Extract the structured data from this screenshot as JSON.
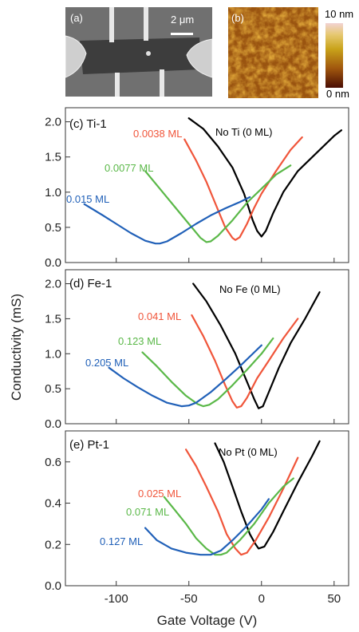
{
  "images": {
    "sem": {
      "panel": "(a)",
      "scalebar": "2 μm"
    },
    "afm": {
      "panel": "(b)",
      "colorbar_top": "10 nm",
      "colorbar_bottom": "0 nm"
    }
  },
  "chart_data": [
    {
      "type": "line",
      "panel": "(c) Ti-1",
      "xlim": [
        -135,
        60
      ],
      "ylim": [
        0,
        2.2
      ],
      "yticks": [
        "0.0",
        "0.5",
        "1.0",
        "1.5",
        "2.0"
      ],
      "series": [
        {
          "name": "No Ti (0 ML)",
          "color": "#000000",
          "x": [
            -50,
            -40,
            -30,
            -20,
            -12,
            -6,
            -3,
            0,
            3,
            8,
            15,
            25,
            40,
            50,
            55
          ],
          "y": [
            2.05,
            1.9,
            1.65,
            1.35,
            0.98,
            0.6,
            0.45,
            0.37,
            0.45,
            0.7,
            1.0,
            1.3,
            1.6,
            1.8,
            1.88
          ]
        },
        {
          "name": "0.0038 ML",
          "color": "#f0553a",
          "x": [
            -53,
            -45,
            -38,
            -32,
            -25,
            -20,
            -18,
            -15,
            -10,
            -5,
            0,
            10,
            20,
            28
          ],
          "y": [
            1.75,
            1.45,
            1.15,
            0.85,
            0.5,
            0.35,
            0.32,
            0.36,
            0.55,
            0.78,
            0.98,
            1.3,
            1.6,
            1.78
          ]
        },
        {
          "name": "0.0077 ML",
          "color": "#5ab848",
          "x": [
            -80,
            -70,
            -60,
            -50,
            -42,
            -38,
            -35,
            -30,
            -20,
            -10,
            0,
            10,
            20
          ],
          "y": [
            1.3,
            1.05,
            0.8,
            0.55,
            0.35,
            0.29,
            0.3,
            0.38,
            0.6,
            0.85,
            1.05,
            1.25,
            1.38
          ]
        },
        {
          "name": "0.015 ML",
          "color": "#2060b8",
          "x": [
            -122,
            -110,
            -100,
            -90,
            -80,
            -73,
            -70,
            -65,
            -55,
            -45,
            -35,
            -25,
            -15,
            -8
          ],
          "y": [
            0.83,
            0.68,
            0.55,
            0.42,
            0.31,
            0.27,
            0.27,
            0.3,
            0.42,
            0.55,
            0.67,
            0.77,
            0.86,
            0.93
          ]
        }
      ]
    },
    {
      "type": "line",
      "panel": "(d) Fe-1",
      "xlim": [
        -135,
        60
      ],
      "ylim": [
        0,
        2.2
      ],
      "yticks": [
        "0.0",
        "0.5",
        "1.0",
        "1.5",
        "2.0"
      ],
      "series": [
        {
          "name": "No Fe (0 ML)",
          "color": "#000000",
          "x": [
            -47,
            -38,
            -28,
            -18,
            -10,
            -5,
            -2,
            1,
            5,
            12,
            20,
            30,
            40
          ],
          "y": [
            2.0,
            1.75,
            1.4,
            1.0,
            0.6,
            0.35,
            0.22,
            0.25,
            0.45,
            0.8,
            1.15,
            1.5,
            1.88
          ]
        },
        {
          "name": "0.041 ML",
          "color": "#f0553a",
          "x": [
            -48,
            -40,
            -32,
            -25,
            -20,
            -17,
            -14,
            -10,
            -3,
            5,
            15,
            25
          ],
          "y": [
            1.55,
            1.25,
            0.9,
            0.55,
            0.32,
            0.23,
            0.25,
            0.37,
            0.65,
            0.9,
            1.22,
            1.5
          ]
        },
        {
          "name": "0.123 ML",
          "color": "#5ab848",
          "x": [
            -82,
            -72,
            -62,
            -52,
            -44,
            -40,
            -36,
            -30,
            -20,
            -10,
            0,
            8
          ],
          "y": [
            1.02,
            0.82,
            0.6,
            0.4,
            0.28,
            0.25,
            0.27,
            0.35,
            0.55,
            0.77,
            1.0,
            1.22
          ]
        },
        {
          "name": "0.205 ML",
          "color": "#2060b8",
          "x": [
            -105,
            -95,
            -85,
            -75,
            -65,
            -55,
            -50,
            -45,
            -35,
            -25,
            -15,
            -5,
            0
          ],
          "y": [
            0.8,
            0.65,
            0.52,
            0.4,
            0.3,
            0.25,
            0.26,
            0.3,
            0.45,
            0.63,
            0.82,
            1.02,
            1.12
          ]
        }
      ]
    },
    {
      "type": "line",
      "panel": "(e) Pt-1",
      "xlim": [
        -135,
        60
      ],
      "ylim": [
        0,
        0.75
      ],
      "yticks": [
        "0.0",
        "0.2",
        "0.4",
        "0.6"
      ],
      "xticks": [
        "-100",
        "-50",
        "0",
        "50"
      ],
      "xlabel": "Gate Voltage (V)",
      "series": [
        {
          "name": "No Pt (0 ML)",
          "color": "#000000",
          "x": [
            -32,
            -26,
            -20,
            -14,
            -8,
            -4,
            -2,
            2,
            8,
            15,
            25,
            35,
            40
          ],
          "y": [
            0.69,
            0.6,
            0.48,
            0.36,
            0.25,
            0.2,
            0.18,
            0.19,
            0.26,
            0.36,
            0.5,
            0.63,
            0.7
          ]
        },
        {
          "name": "0.025 ML",
          "color": "#f0553a",
          "x": [
            -52,
            -45,
            -38,
            -30,
            -24,
            -18,
            -14,
            -10,
            -4,
            5,
            15,
            25
          ],
          "y": [
            0.66,
            0.58,
            0.48,
            0.36,
            0.25,
            0.18,
            0.15,
            0.16,
            0.22,
            0.33,
            0.47,
            0.62
          ]
        },
        {
          "name": "0.071 ML",
          "color": "#5ab848",
          "x": [
            -67,
            -60,
            -52,
            -45,
            -38,
            -32,
            -28,
            -24,
            -15,
            -5,
            5,
            15,
            22
          ],
          "y": [
            0.43,
            0.37,
            0.3,
            0.23,
            0.18,
            0.15,
            0.15,
            0.16,
            0.22,
            0.3,
            0.4,
            0.48,
            0.52
          ]
        },
        {
          "name": "0.127 ML",
          "color": "#2060b8",
          "x": [
            -80,
            -72,
            -62,
            -52,
            -42,
            -35,
            -28,
            -20,
            -10,
            0,
            5
          ],
          "y": [
            0.28,
            0.22,
            0.18,
            0.16,
            0.15,
            0.15,
            0.17,
            0.22,
            0.29,
            0.37,
            0.42
          ]
        }
      ]
    }
  ],
  "shared": {
    "ylabel": "Conductivity (mS)"
  }
}
